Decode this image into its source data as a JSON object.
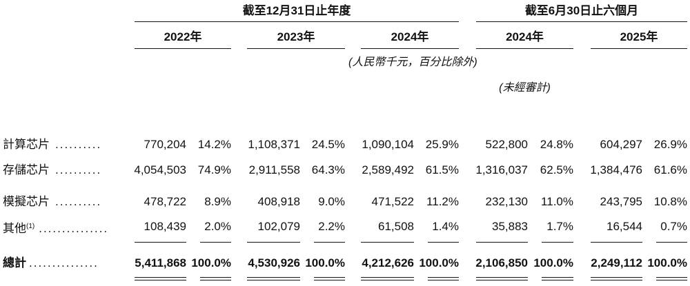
{
  "header": {
    "group1_title": "截至12月31日止年度",
    "group2_title": "截至6月30日止六個月",
    "years": [
      "2022年",
      "2023年",
      "2024年",
      "2024年",
      "2025年"
    ],
    "unit_note": "(人民幣千元，百分比除外)",
    "unaudited_note": "(未經審計)"
  },
  "rows": [
    {
      "label": "計算芯片",
      "dots": "..........",
      "cells": [
        "770,204",
        "14.2%",
        "1,108,371",
        "24.5%",
        "1,090,104",
        "25.9%",
        "522,800",
        "24.8%",
        "604,297",
        "26.9%"
      ]
    },
    {
      "label": "存儲芯片",
      "dots": "..........",
      "cells": [
        "4,054,503",
        "74.9%",
        "2,911,558",
        "64.3%",
        "2,589,492",
        "61.5%",
        "1,316,037",
        "62.5%",
        "1,384,476",
        "61.6%"
      ]
    },
    {
      "label": "模擬芯片",
      "dots": "..........",
      "cells": [
        "478,722",
        "8.9%",
        "408,918",
        "9.0%",
        "471,522",
        "11.2%",
        "232,130",
        "11.0%",
        "243,795",
        "10.8%"
      ]
    },
    {
      "label": "其他",
      "sup": "(1)",
      "dots": "...............",
      "cells": [
        "108,439",
        "2.0%",
        "102,079",
        "2.2%",
        "61,508",
        "1.4%",
        "35,883",
        "1.7%",
        "16,544",
        "0.7%"
      ]
    }
  ],
  "total": {
    "label": "總計",
    "dots": "...............",
    "cells": [
      "5,411,868",
      "100.0%",
      "4,530,926",
      "100.0%",
      "4,212,626",
      "100.0%",
      "2,106,850",
      "100.0%",
      "2,249,112",
      "100.0%"
    ]
  }
}
